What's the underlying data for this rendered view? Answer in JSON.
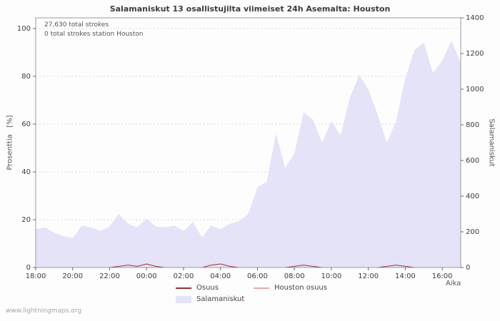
{
  "page": {
    "watermark": "www.lightningmaps.org"
  },
  "chart_data": {
    "type": "area",
    "title": "Salamaniskut 13 osallistujilta viimeiset 24h Asemalta: Houston",
    "xlabel": "Aika",
    "ylabel_left": "Prosenttia   [%]",
    "ylabel_right": "Salamaniskut",
    "annotations": [
      "27,630 total strokes",
      "0 total strokes station Houston"
    ],
    "grid": true,
    "legend_position": "bottom",
    "x_range_hours": [
      0,
      23
    ],
    "x_tick_hours": [
      0,
      2,
      4,
      6,
      8,
      10,
      12,
      14,
      16,
      18,
      20,
      22
    ],
    "x_tick_labels": [
      "18:00",
      "20:00",
      "22:00",
      "00:00",
      "02:00",
      "04:00",
      "06:00",
      "08:00",
      "10:00",
      "12:00",
      "14:00",
      "16:00"
    ],
    "y_left_range": [
      0,
      100
    ],
    "y_left_ticks": [
      0,
      20,
      40,
      60,
      80,
      100
    ],
    "y_left_top_right_equiv": 1340,
    "y_right_range": [
      0,
      1400
    ],
    "y_right_ticks": [
      0,
      200,
      400,
      600,
      800,
      1000,
      1200,
      1400
    ],
    "series": [
      {
        "name": "Osuus",
        "type": "line",
        "axis": "left",
        "color": "#993333",
        "values": [
          0,
          0,
          0,
          0,
          0,
          0,
          0,
          0,
          0,
          0.5,
          1,
          0.5,
          1.5,
          0.5,
          0,
          0,
          0,
          0,
          0,
          1,
          1.5,
          0.5,
          0,
          0,
          0,
          0,
          0,
          0,
          0.5,
          1,
          0.5,
          0,
          0,
          0,
          0,
          0,
          0,
          0,
          0.5,
          1,
          0.5,
          0,
          0,
          0,
          0,
          0,
          0
        ]
      },
      {
        "name": "Houston osuus",
        "type": "line",
        "axis": "left",
        "color": "#e8aaa2",
        "values": [
          0,
          0,
          0,
          0,
          0,
          0,
          0,
          0,
          0,
          0,
          0,
          0,
          0,
          0,
          0,
          0,
          0,
          0,
          0,
          0,
          0,
          0,
          0,
          0,
          0,
          0,
          0,
          0,
          0,
          0,
          0,
          0,
          0,
          0,
          0,
          0,
          0,
          0,
          0,
          0,
          0,
          0,
          0,
          0,
          0,
          0,
          0
        ]
      },
      {
        "name": "Salamaniskut",
        "type": "area",
        "axis": "right",
        "color": "#e5e3f8",
        "values": [
          215,
          225,
          195,
          175,
          165,
          235,
          225,
          205,
          230,
          300,
          245,
          225,
          275,
          230,
          225,
          235,
          205,
          255,
          170,
          235,
          215,
          245,
          260,
          300,
          450,
          480,
          750,
          560,
          640,
          870,
          830,
          700,
          820,
          740,
          950,
          1080,
          1000,
          860,
          700,
          820,
          1060,
          1220,
          1260,
          1090,
          1160,
          1270,
          1150
        ]
      }
    ]
  }
}
